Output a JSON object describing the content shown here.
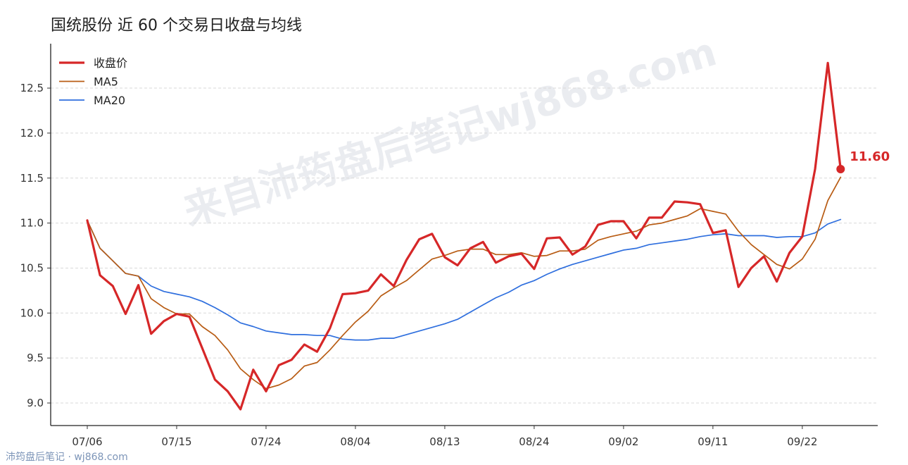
{
  "title": "国统股份 近 60 个交易日收盘与均线",
  "footer": "沛筠盘后笔记 · wj868.com",
  "watermark": "来自沛筠盘后笔记wj868.com",
  "chart_data": {
    "type": "line",
    "ylim": [
      8.9,
      12.85
    ],
    "yticks": [
      "9.0",
      "9.5",
      "10.0",
      "10.5",
      "11.0",
      "11.5",
      "12.0",
      "12.5"
    ],
    "xticks": [
      {
        "index": 0,
        "label": "07/06"
      },
      {
        "index": 7,
        "label": "07/15"
      },
      {
        "index": 14,
        "label": "07/24"
      },
      {
        "index": 21,
        "label": "08/04"
      },
      {
        "index": 28,
        "label": "08/13"
      },
      {
        "index": 35,
        "label": "08/24"
      },
      {
        "index": 42,
        "label": "09/02"
      },
      {
        "index": 49,
        "label": "09/11"
      },
      {
        "index": 56,
        "label": "09/22"
      }
    ],
    "grid": "horizontal",
    "legend_position": "top-left",
    "last_label": "11.60",
    "colors": {
      "close": "#d62728",
      "ma5": "#b85c14",
      "ma20": "#2f6fde"
    },
    "series": [
      {
        "name": "收盘价",
        "key": "close",
        "values": [
          11.03,
          10.42,
          10.3,
          9.99,
          10.31,
          9.77,
          9.91,
          9.99,
          9.96,
          9.61,
          9.26,
          9.13,
          8.93,
          9.37,
          9.13,
          9.42,
          9.48,
          9.65,
          9.57,
          9.83,
          10.21,
          10.22,
          10.25,
          10.43,
          10.3,
          10.59,
          10.82,
          10.88,
          10.62,
          10.53,
          10.72,
          10.79,
          10.56,
          10.63,
          10.66,
          10.49,
          10.83,
          10.84,
          10.65,
          10.74,
          10.98,
          11.02,
          11.02,
          10.83,
          11.06,
          11.06,
          11.24,
          11.23,
          11.21,
          10.89,
          10.92,
          10.29,
          10.5,
          10.63,
          10.35,
          10.67,
          10.85,
          11.6,
          12.78,
          11.6
        ]
      },
      {
        "name": "MA5",
        "key": "ma5",
        "values": [
          11.03,
          10.72,
          10.58,
          10.44,
          10.41,
          10.16,
          10.06,
          9.99,
          9.99,
          9.85,
          9.75,
          9.59,
          9.38,
          9.26,
          9.16,
          9.2,
          9.27,
          9.41,
          9.45,
          9.59,
          9.75,
          9.9,
          10.02,
          10.19,
          10.28,
          10.36,
          10.48,
          10.6,
          10.64,
          10.69,
          10.71,
          10.71,
          10.65,
          10.65,
          10.67,
          10.63,
          10.64,
          10.69,
          10.69,
          10.71,
          10.81,
          10.85,
          10.88,
          10.91,
          10.98,
          11.0,
          11.04,
          11.08,
          11.16,
          11.13,
          11.1,
          10.91,
          10.76,
          10.65,
          10.54,
          10.49,
          10.6,
          10.82,
          11.25,
          11.51
        ]
      },
      {
        "name": "MA20",
        "key": "ma20",
        "values": [
          11.03,
          10.72,
          10.58,
          10.44,
          10.41,
          10.3,
          10.24,
          10.21,
          10.18,
          10.13,
          10.06,
          9.98,
          9.89,
          9.85,
          9.8,
          9.78,
          9.76,
          9.76,
          9.75,
          9.75,
          9.71,
          9.7,
          9.7,
          9.72,
          9.72,
          9.76,
          9.8,
          9.84,
          9.88,
          9.93,
          10.01,
          10.09,
          10.17,
          10.23,
          10.31,
          10.36,
          10.43,
          10.49,
          10.54,
          10.58,
          10.62,
          10.66,
          10.7,
          10.72,
          10.76,
          10.78,
          10.8,
          10.82,
          10.85,
          10.87,
          10.88,
          10.86,
          10.86,
          10.86,
          10.84,
          10.85,
          10.85,
          10.89,
          10.99,
          11.04
        ]
      }
    ]
  }
}
